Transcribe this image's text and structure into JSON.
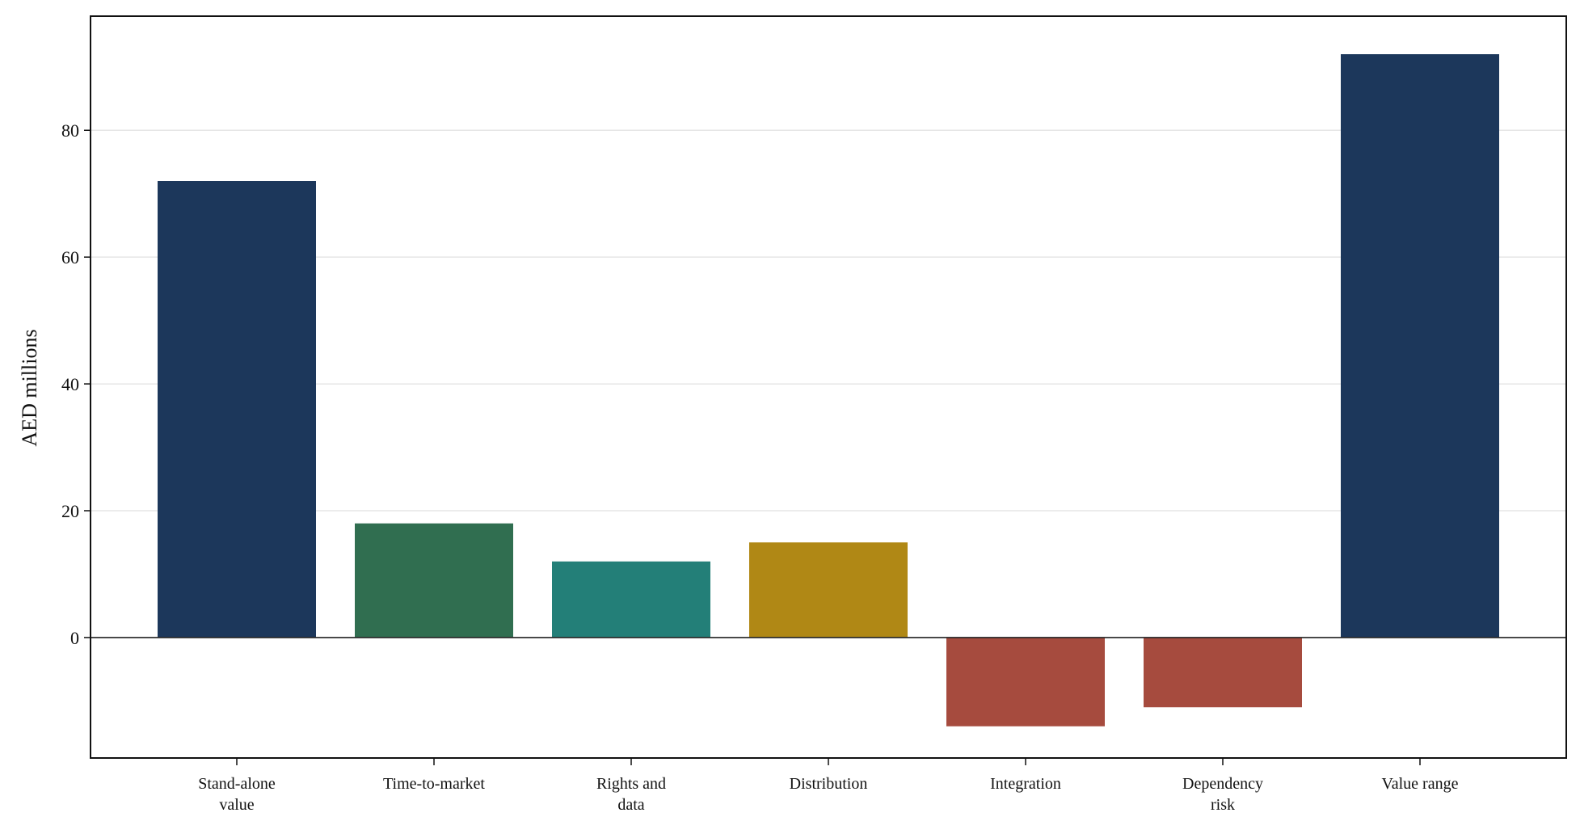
{
  "chart_data": {
    "type": "bar",
    "title": "",
    "xlabel": "",
    "ylabel": "AED millions",
    "ylim": [
      -19,
      98
    ],
    "yticks": [
      0,
      20,
      40,
      60,
      80
    ],
    "grid": "y",
    "categories": [
      [
        "Stand-alone",
        "value"
      ],
      [
        "Time-to-market"
      ],
      [
        "Rights and",
        "data"
      ],
      [
        "Distribution"
      ],
      [
        "Integration"
      ],
      [
        "Dependency",
        "risk"
      ],
      [
        "Value range"
      ]
    ],
    "values": [
      72,
      18,
      12,
      15,
      -14,
      -11,
      92
    ],
    "colors": [
      "#1c375b",
      "#306e50",
      "#237f78",
      "#b08815",
      "#a64b3e",
      "#a64b3e",
      "#1c375b"
    ]
  }
}
